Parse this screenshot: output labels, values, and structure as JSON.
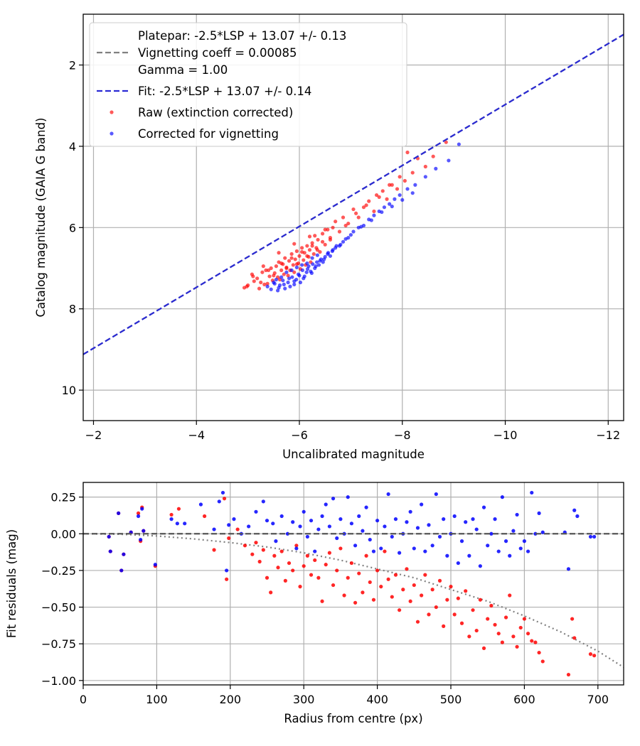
{
  "chart_data": [
    {
      "type": "scatter",
      "xlabel": "Uncalibrated magnitude",
      "ylabel": "Catalog magnitude (GAIA G band)",
      "xlim": [
        -1.8,
        -12.3
      ],
      "ylim": [
        10.75,
        0.75
      ],
      "x_inverted": true,
      "y_inverted": true,
      "xticks": [
        -2,
        -4,
        -6,
        -8,
        -10,
        -12
      ],
      "xtick_labels": [
        "−2",
        "−4",
        "−6",
        "−8",
        "−10",
        "−12"
      ],
      "yticks": [
        2,
        4,
        6,
        8,
        10
      ],
      "ytick_labels": [
        "2",
        "4",
        "6",
        "8",
        "10"
      ],
      "grid": true,
      "legend_position": "upper-left",
      "legend": {
        "platepar_line1": "Platepar: -2.5*LSP + 13.07 +/- 0.13",
        "platepar_line2": "Vignetting coeff = 0.00085",
        "platepar_line3": "Gamma = 1.00",
        "fit": "Fit: -2.5*LSP + 13.07 +/- 0.14",
        "raw": "Raw (extinction corrected)",
        "corrected": "Corrected for vignetting"
      },
      "colors": {
        "platepar": "#808080",
        "fit": "#2a2ad4",
        "raw": "#ff0000",
        "corrected": "#0000ff"
      },
      "lines": [
        {
          "name": "Platepar",
          "style": "dashed",
          "x": [
            -1.8,
            -12.3
          ],
          "y": [
            9.12,
            1.25
          ]
        },
        {
          "name": "Fit",
          "style": "dashed",
          "x": [
            -1.8,
            -12.3
          ],
          "y": [
            9.12,
            1.25
          ]
        }
      ],
      "series": [
        {
          "name": "Raw (extinction corrected)",
          "x": [
            -4.93,
            -4.98,
            -5.08,
            -5.12,
            -5.18,
            -5.22,
            -5.28,
            -5.32,
            -5.35,
            -5.38,
            -5.42,
            -5.45,
            -5.48,
            -5.52,
            -5.55,
            -5.58,
            -5.6,
            -5.62,
            -5.65,
            -5.68,
            -5.7,
            -5.72,
            -5.75,
            -5.78,
            -5.8,
            -5.82,
            -5.85,
            -5.88,
            -5.9,
            -5.92,
            -5.95,
            -5.98,
            -6.0,
            -6.02,
            -6.05,
            -6.08,
            -6.1,
            -6.12,
            -6.15,
            -6.18,
            -6.2,
            -6.22,
            -6.25,
            -6.28,
            -6.3,
            -6.33,
            -6.36,
            -6.4,
            -6.45,
            -6.5,
            -6.55,
            -6.6,
            -6.65,
            -6.7,
            -6.78,
            -6.85,
            -6.95,
            -7.05,
            -7.15,
            -7.25,
            -7.35,
            -7.45,
            -7.55,
            -7.62,
            -7.7,
            -7.8,
            -7.9,
            -8.05,
            -8.2,
            -8.45,
            -8.6,
            -8.85,
            -5.0,
            -5.1,
            -5.25,
            -5.4,
            -5.5,
            -5.65,
            -5.75,
            -5.85,
            -5.95,
            -6.05,
            -6.15,
            -6.25,
            -6.35,
            -6.45,
            -6.6,
            -6.9,
            -7.1,
            -7.3,
            -7.5,
            -7.75,
            -7.95,
            -8.1,
            -8.3,
            -5.3,
            -5.6,
            -5.9,
            -6.2,
            -6.5
          ],
          "y": [
            7.48,
            7.45,
            7.15,
            7.32,
            7.25,
            7.5,
            7.1,
            7.4,
            7.05,
            7.38,
            7.2,
            7.0,
            7.3,
            7.12,
            6.95,
            7.22,
            6.85,
            7.28,
            7.05,
            6.9,
            7.15,
            6.75,
            6.98,
            7.18,
            6.82,
            7.05,
            6.65,
            6.92,
            7.1,
            6.78,
            6.58,
            6.88,
            6.7,
            7.02,
            6.5,
            6.8,
            6.62,
            6.92,
            6.45,
            6.72,
            6.55,
            6.85,
            6.38,
            6.65,
            6.2,
            6.5,
            6.3,
            6.6,
            6.15,
            6.42,
            6.05,
            6.3,
            6.0,
            5.85,
            6.1,
            5.75,
            5.9,
            5.55,
            5.75,
            5.5,
            5.35,
            5.6,
            5.25,
            5.1,
            5.3,
            4.95,
            5.05,
            4.85,
            4.65,
            4.5,
            4.25,
            3.9,
            7.42,
            7.2,
            7.35,
            7.05,
            7.18,
            6.88,
            7.0,
            6.75,
            6.9,
            6.6,
            6.7,
            6.45,
            6.55,
            6.35,
            6.25,
            5.95,
            5.65,
            5.45,
            5.2,
            4.95,
            4.75,
            4.15,
            4.3,
            6.95,
            6.62,
            6.4,
            6.22,
            6.05
          ]
        },
        {
          "name": "Corrected for vignetting",
          "x": [
            -5.38,
            -5.45,
            -5.52,
            -5.58,
            -5.62,
            -5.68,
            -5.72,
            -5.78,
            -5.82,
            -5.86,
            -5.9,
            -5.94,
            -5.98,
            -6.02,
            -6.06,
            -6.1,
            -6.14,
            -6.18,
            -6.22,
            -6.26,
            -6.3,
            -6.34,
            -6.38,
            -6.42,
            -6.46,
            -6.5,
            -6.55,
            -6.6,
            -6.65,
            -6.7,
            -6.78,
            -6.85,
            -6.95,
            -7.05,
            -7.15,
            -7.25,
            -7.35,
            -7.45,
            -7.55,
            -7.65,
            -7.75,
            -7.85,
            -7.95,
            -8.1,
            -8.25,
            -8.45,
            -8.65,
            -8.9,
            -9.1,
            -5.5,
            -5.6,
            -5.7,
            -5.8,
            -5.9,
            -6.0,
            -6.08,
            -6.16,
            -6.24,
            -6.32,
            -6.4,
            -6.48,
            -6.56,
            -6.64,
            -6.72,
            -6.8,
            -6.9,
            -7.0,
            -7.2,
            -7.4,
            -7.6,
            -7.8,
            -8.0,
            -8.2,
            -5.55,
            -5.65,
            -5.75,
            -5.85,
            -5.95,
            -6.05,
            -6.15,
            -6.25,
            -6.35
          ],
          "y": [
            7.45,
            7.52,
            7.38,
            7.55,
            7.42,
            7.3,
            7.5,
            7.35,
            7.45,
            7.22,
            7.4,
            7.28,
            7.15,
            7.35,
            7.05,
            7.2,
            7.1,
            6.95,
            7.08,
            6.9,
            7.0,
            6.85,
            6.92,
            6.78,
            6.85,
            6.72,
            6.65,
            6.7,
            6.55,
            6.5,
            6.45,
            6.35,
            6.25,
            6.1,
            6.0,
            5.95,
            5.8,
            5.7,
            5.6,
            5.5,
            5.42,
            5.3,
            5.2,
            5.05,
            4.95,
            4.75,
            4.55,
            4.35,
            3.95,
            7.35,
            7.48,
            7.4,
            7.25,
            7.32,
            7.18,
            7.25,
            7.02,
            7.12,
            6.95,
            6.82,
            6.78,
            6.62,
            6.58,
            6.45,
            6.42,
            6.28,
            6.18,
            5.98,
            5.82,
            5.62,
            5.48,
            5.32,
            5.15,
            7.28,
            7.22,
            7.1,
            7.05,
            6.98,
            6.92,
            6.88,
            6.75,
            6.68
          ]
        }
      ]
    },
    {
      "type": "scatter",
      "xlabel": "Radius from centre (px)",
      "ylabel": "Fit residuals (mag)",
      "xlim": [
        0,
        735
      ],
      "ylim": [
        -1.03,
        0.35
      ],
      "xticks": [
        0,
        100,
        200,
        300,
        400,
        500,
        600,
        700
      ],
      "xtick_labels": [
        "0",
        "100",
        "200",
        "300",
        "400",
        "500",
        "600",
        "700"
      ],
      "yticks": [
        0.25,
        0.0,
        -0.25,
        -0.5,
        -0.75,
        -1.0
      ],
      "ytick_labels": [
        "0.25",
        "0.00",
        "−0.25",
        "−0.50",
        "−0.75",
        "−1.00"
      ],
      "grid": true,
      "colors": {
        "zero_line": "#555555",
        "model": "#808080",
        "raw": "#ff0000",
        "corrected": "#0000ff"
      },
      "zero_line": 0.0,
      "vignetting_curve": {
        "x": [
          0,
          50,
          100,
          150,
          200,
          250,
          300,
          350,
          400,
          450,
          500,
          550,
          600,
          650,
          700,
          735
        ],
        "y": [
          0.0,
          -0.003,
          -0.015,
          -0.035,
          -0.06,
          -0.09,
          -0.13,
          -0.18,
          -0.24,
          -0.3,
          -0.38,
          -0.46,
          -0.56,
          -0.67,
          -0.8,
          -0.91
        ]
      },
      "series": [
        {
          "name": "Raw",
          "x": [
            35,
            37,
            48,
            52,
            55,
            65,
            75,
            78,
            80,
            82,
            98,
            120,
            130,
            165,
            178,
            192,
            195,
            198,
            210,
            220,
            230,
            235,
            240,
            245,
            250,
            255,
            260,
            265,
            270,
            275,
            280,
            285,
            290,
            295,
            300,
            305,
            310,
            315,
            320,
            325,
            330,
            335,
            340,
            345,
            350,
            355,
            360,
            365,
            370,
            375,
            380,
            385,
            390,
            395,
            400,
            405,
            410,
            415,
            420,
            425,
            430,
            435,
            440,
            445,
            450,
            455,
            460,
            465,
            470,
            475,
            480,
            485,
            490,
            495,
            500,
            505,
            510,
            515,
            520,
            525,
            530,
            535,
            540,
            545,
            550,
            555,
            560,
            565,
            570,
            575,
            580,
            585,
            590,
            595,
            600,
            605,
            610,
            615,
            620,
            625,
            660,
            665,
            668,
            690,
            695
          ],
          "y": [
            -0.02,
            -0.12,
            0.14,
            -0.25,
            -0.14,
            0.01,
            0.14,
            -0.05,
            0.18,
            0.02,
            -0.22,
            0.13,
            0.17,
            0.12,
            -0.11,
            0.24,
            -0.31,
            -0.03,
            0.03,
            -0.08,
            -0.14,
            -0.06,
            -0.19,
            -0.11,
            -0.3,
            -0.4,
            -0.15,
            -0.23,
            -0.12,
            -0.32,
            -0.2,
            -0.25,
            -0.08,
            -0.36,
            -0.22,
            -0.15,
            -0.28,
            -0.18,
            -0.3,
            -0.46,
            -0.21,
            -0.13,
            -0.35,
            -0.25,
            -0.1,
            -0.42,
            -0.3,
            -0.2,
            -0.47,
            -0.27,
            -0.4,
            -0.15,
            -0.33,
            -0.45,
            -0.25,
            -0.36,
            -0.12,
            -0.31,
            -0.43,
            -0.28,
            -0.52,
            -0.38,
            -0.24,
            -0.46,
            -0.35,
            -0.6,
            -0.42,
            -0.28,
            -0.55,
            -0.38,
            -0.5,
            -0.32,
            -0.63,
            -0.45,
            -0.36,
            -0.55,
            -0.44,
            -0.61,
            -0.39,
            -0.7,
            -0.52,
            -0.66,
            -0.45,
            -0.78,
            -0.58,
            -0.49,
            -0.62,
            -0.68,
            -0.74,
            -0.57,
            -0.42,
            -0.7,
            -0.77,
            -0.64,
            -0.58,
            -0.68,
            -0.73,
            -0.74,
            -0.81,
            -0.87,
            -0.96,
            -0.58,
            -0.71,
            -0.82,
            -0.83
          ]
        },
        {
          "name": "Corrected",
          "x": [
            35,
            37,
            48,
            52,
            55,
            65,
            75,
            78,
            80,
            82,
            98,
            120,
            128,
            138,
            160,
            178,
            185,
            190,
            195,
            198,
            205,
            215,
            225,
            235,
            245,
            250,
            258,
            262,
            270,
            278,
            285,
            290,
            295,
            300,
            305,
            310,
            315,
            320,
            325,
            330,
            335,
            340,
            345,
            350,
            355,
            360,
            365,
            370,
            375,
            380,
            385,
            390,
            395,
            400,
            405,
            410,
            415,
            420,
            425,
            430,
            435,
            440,
            445,
            450,
            455,
            460,
            465,
            470,
            475,
            480,
            485,
            490,
            495,
            500,
            505,
            510,
            515,
            520,
            525,
            530,
            535,
            540,
            545,
            550,
            555,
            560,
            565,
            570,
            575,
            580,
            585,
            590,
            595,
            600,
            605,
            610,
            615,
            620,
            625,
            655,
            660,
            668,
            672,
            690,
            695
          ],
          "y": [
            -0.02,
            -0.12,
            0.14,
            -0.25,
            -0.14,
            0.01,
            0.12,
            -0.04,
            0.17,
            0.02,
            -0.21,
            0.1,
            0.07,
            0.07,
            0.2,
            0.03,
            0.22,
            0.28,
            -0.25,
            0.06,
            0.1,
            0.0,
            0.05,
            0.15,
            0.22,
            0.09,
            0.07,
            -0.05,
            0.12,
            0.0,
            0.08,
            -0.1,
            0.05,
            0.15,
            -0.02,
            0.09,
            -0.12,
            0.03,
            0.12,
            0.2,
            0.05,
            0.24,
            -0.03,
            0.1,
            0.0,
            0.25,
            0.07,
            -0.08,
            0.12,
            0.02,
            0.18,
            -0.04,
            -0.12,
            0.09,
            -0.1,
            0.05,
            0.27,
            -0.02,
            0.1,
            -0.13,
            0.0,
            0.08,
            0.15,
            -0.1,
            0.04,
            0.2,
            -0.12,
            0.06,
            -0.08,
            0.27,
            -0.02,
            0.1,
            -0.15,
            0.0,
            0.12,
            -0.2,
            -0.05,
            0.08,
            -0.15,
            0.1,
            0.03,
            -0.22,
            0.18,
            -0.08,
            0.0,
            0.1,
            -0.12,
            0.25,
            -0.05,
            -0.15,
            0.02,
            0.13,
            -0.1,
            -0.05,
            -0.12,
            0.28,
            0.0,
            0.14,
            0.01,
            0.01,
            -0.24,
            0.16,
            0.12,
            -0.02,
            -0.02
          ]
        }
      ]
    }
  ]
}
